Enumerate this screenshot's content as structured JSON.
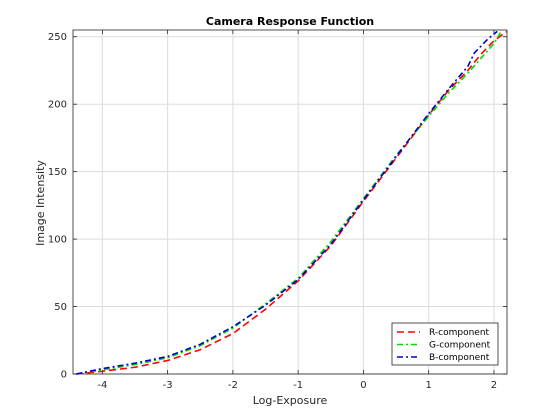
{
  "chart_data": {
    "type": "line",
    "title": "Camera Response Function",
    "xlabel": "Log-Exposure",
    "ylabel": "Image Intensity",
    "xlim": [
      -4.45,
      2.2
    ],
    "ylim": [
      0,
      255
    ],
    "xticks": [
      -4,
      -3,
      -2,
      -1,
      0,
      1,
      2
    ],
    "yticks": [
      0,
      50,
      100,
      150,
      200,
      250
    ],
    "xtick_labels": [
      "-4",
      "-3",
      "-2",
      "-1",
      "0",
      "1",
      "2"
    ],
    "ytick_labels": [
      "0",
      "50",
      "100",
      "150",
      "200",
      "250"
    ],
    "grid": true,
    "legend": {
      "position": "bottom-right"
    },
    "series": [
      {
        "name": "R-component",
        "color": "#ff0000",
        "dash": "dashed",
        "points": [
          [
            -4.4,
            0
          ],
          [
            -4.0,
            2
          ],
          [
            -3.5,
            5
          ],
          [
            -3.0,
            10
          ],
          [
            -2.5,
            18
          ],
          [
            -2.0,
            30
          ],
          [
            -1.5,
            48
          ],
          [
            -1.0,
            69
          ],
          [
            -0.5,
            95
          ],
          [
            0.0,
            128
          ],
          [
            0.5,
            160
          ],
          [
            1.0,
            192
          ],
          [
            1.3,
            210
          ],
          [
            1.6,
            225
          ],
          [
            1.8,
            237
          ],
          [
            2.0,
            247
          ],
          [
            2.2,
            254
          ]
        ]
      },
      {
        "name": "G-component",
        "color": "#00dd00",
        "dash": "dashdot",
        "points": [
          [
            -4.4,
            0
          ],
          [
            -4.0,
            3
          ],
          [
            -3.5,
            7
          ],
          [
            -3.0,
            12
          ],
          [
            -2.5,
            21
          ],
          [
            -2.0,
            34
          ],
          [
            -1.5,
            52
          ],
          [
            -1.0,
            71
          ],
          [
            -0.5,
            98
          ],
          [
            0.0,
            130
          ],
          [
            0.5,
            162
          ],
          [
            1.0,
            191
          ],
          [
            1.3,
            208
          ],
          [
            1.6,
            223
          ],
          [
            1.8,
            234
          ],
          [
            2.0,
            245
          ],
          [
            2.1,
            253
          ]
        ]
      },
      {
        "name": "B-component",
        "color": "#0000cc",
        "dash": "dashdot",
        "points": [
          [
            -4.4,
            0
          ],
          [
            -4.0,
            4
          ],
          [
            -3.5,
            8
          ],
          [
            -3.0,
            13
          ],
          [
            -2.5,
            22
          ],
          [
            -2.0,
            35
          ],
          [
            -1.5,
            51
          ],
          [
            -1.0,
            70
          ],
          [
            -0.5,
            96
          ],
          [
            0.0,
            129
          ],
          [
            0.5,
            161
          ],
          [
            1.0,
            193
          ],
          [
            1.3,
            211
          ],
          [
            1.6,
            228
          ],
          [
            1.7,
            238
          ],
          [
            1.9,
            248
          ],
          [
            2.05,
            254
          ]
        ]
      }
    ]
  }
}
